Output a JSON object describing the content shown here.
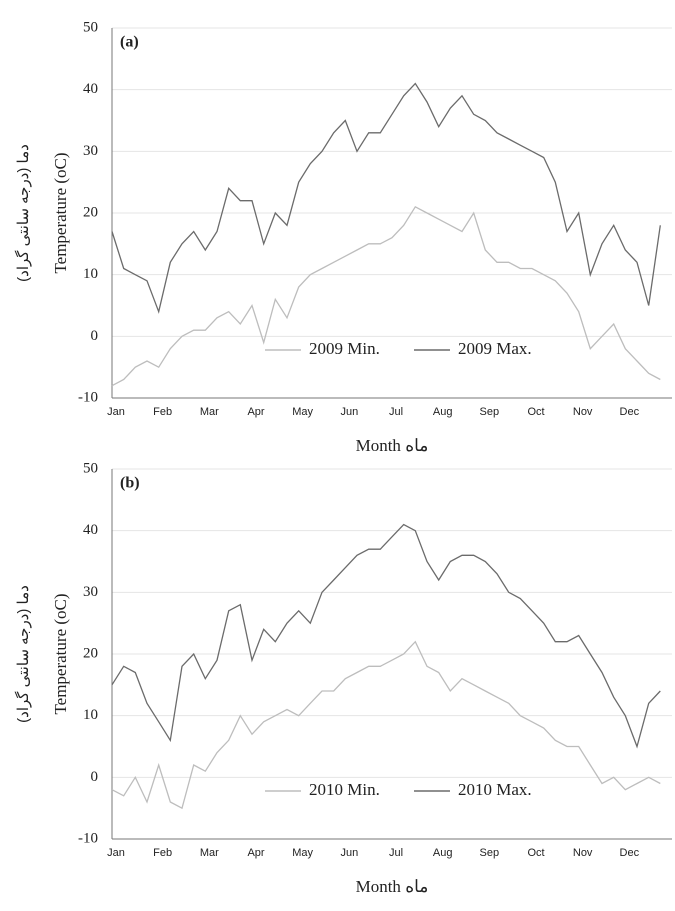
{
  "chart_data": [
    {
      "type": "line",
      "label": "(a)",
      "ylabel": "Temperature (oC)",
      "ylabel_fa": "دما (درجه سانتی گراد)",
      "xlabel": "Month ماه",
      "categories": [
        "Jan",
        null,
        null,
        null,
        "Feb",
        null,
        null,
        null,
        "Mar",
        null,
        null,
        null,
        "Apr",
        null,
        null,
        null,
        "May",
        null,
        null,
        null,
        "Jun",
        null,
        null,
        null,
        "Jul",
        null,
        null,
        null,
        "Aug",
        null,
        null,
        null,
        "Sep",
        null,
        null,
        null,
        "Oct",
        null,
        null,
        null,
        "Nov",
        null,
        null,
        null,
        "Dec",
        null,
        null,
        null
      ],
      "series": [
        {
          "name": "2009 Min.",
          "color": "#bdbdbd",
          "values": [
            -8,
            -7,
            -5,
            -4,
            -5,
            -2,
            0,
            1,
            1,
            3,
            4,
            2,
            5,
            -1,
            6,
            3,
            8,
            10,
            11,
            12,
            13,
            14,
            15,
            15,
            16,
            18,
            21,
            20,
            19,
            18,
            17,
            20,
            14,
            12,
            12,
            11,
            11,
            10,
            9,
            7,
            4,
            -2,
            0,
            2,
            -2,
            -4,
            -6,
            -7
          ]
        },
        {
          "name": "2009 Max.",
          "color": "#6b6b6b",
          "values": [
            17,
            11,
            10,
            9,
            4,
            12,
            15,
            17,
            14,
            17,
            24,
            22,
            22,
            15,
            20,
            18,
            25,
            28,
            30,
            33,
            35,
            30,
            33,
            33,
            36,
            39,
            41,
            38,
            34,
            37,
            39,
            36,
            35,
            33,
            32,
            31,
            30,
            29,
            25,
            17,
            20,
            10,
            15,
            18,
            14,
            12,
            5,
            18
          ]
        }
      ],
      "ylim": [
        -10,
        50
      ],
      "yticks": [
        -10,
        0,
        10,
        20,
        30,
        40,
        50
      ],
      "grid": true,
      "legend": "lower right"
    },
    {
      "type": "line",
      "label": "(b)",
      "ylabel": "Temperature (oC)",
      "ylabel_fa": "دما (درجه سانتی گراد)",
      "xlabel": "Month ماه",
      "categories": [
        "Jan",
        null,
        null,
        null,
        "Feb",
        null,
        null,
        null,
        "Mar",
        null,
        null,
        null,
        "Apr",
        null,
        null,
        null,
        "May",
        null,
        null,
        null,
        "Jun",
        null,
        null,
        null,
        "Jul",
        null,
        null,
        null,
        "Aug",
        null,
        null,
        null,
        "Sep",
        null,
        null,
        null,
        "Oct",
        null,
        null,
        null,
        "Nov",
        null,
        null,
        null,
        "Dec",
        null,
        null,
        null
      ],
      "series": [
        {
          "name": "2010 Min.",
          "color": "#bdbdbd",
          "values": [
            -2,
            -3,
            0,
            -4,
            2,
            -4,
            -5,
            2,
            1,
            4,
            6,
            10,
            7,
            9,
            10,
            11,
            10,
            12,
            14,
            14,
            16,
            17,
            18,
            18,
            19,
            20,
            22,
            18,
            17,
            14,
            16,
            15,
            14,
            13,
            12,
            10,
            9,
            8,
            6,
            5,
            5,
            2,
            -1,
            0,
            -2,
            -1,
            0,
            -1
          ]
        },
        {
          "name": "2010 Max.",
          "color": "#6b6b6b",
          "values": [
            15,
            18,
            17,
            12,
            9,
            6,
            18,
            20,
            16,
            19,
            27,
            28,
            19,
            24,
            22,
            25,
            27,
            25,
            30,
            32,
            34,
            36,
            37,
            37,
            39,
            41,
            40,
            35,
            32,
            35,
            36,
            36,
            35,
            33,
            30,
            29,
            27,
            25,
            22,
            22,
            23,
            20,
            17,
            13,
            10,
            5,
            12,
            14
          ]
        }
      ],
      "ylim": [
        -10,
        50
      ],
      "yticks": [
        -10,
        0,
        10,
        20,
        30,
        40,
        50
      ],
      "grid": true,
      "legend": "lower right"
    }
  ]
}
